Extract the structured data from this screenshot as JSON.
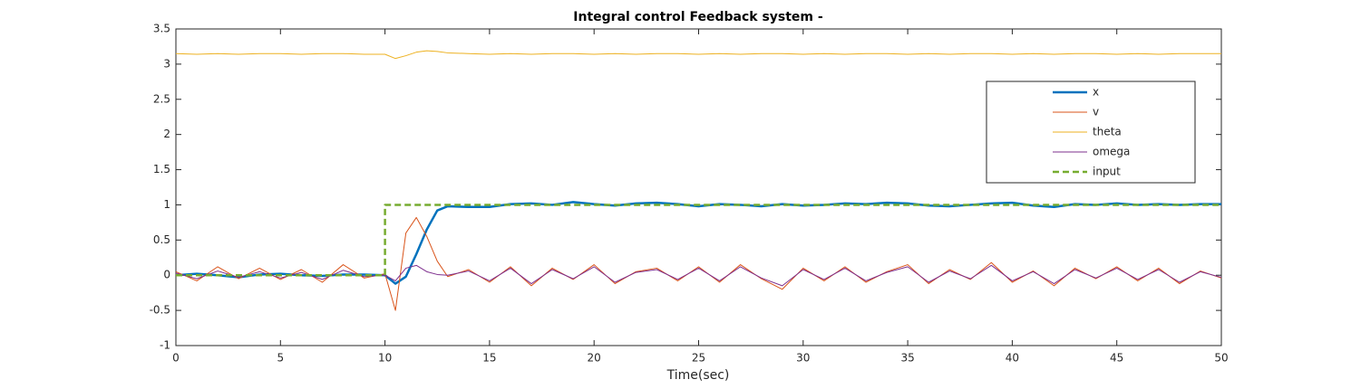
{
  "chart_data": {
    "type": "line",
    "title": "Integral control Feedback system -",
    "x_label": "Time(sec)",
    "x": [
      0,
      1,
      2,
      3,
      4,
      5,
      6,
      7,
      8,
      9,
      10,
      10,
      10.5,
      11,
      11.5,
      12,
      12.5,
      13,
      14,
      15,
      16,
      17,
      18,
      19,
      20,
      21,
      22,
      23,
      24,
      25,
      26,
      27,
      28,
      29,
      30,
      31,
      32,
      33,
      34,
      35,
      36,
      37,
      38,
      39,
      40,
      41,
      42,
      43,
      44,
      45,
      46,
      47,
      48,
      49,
      50
    ],
    "series": [
      {
        "name": "x",
        "color": "#0072bd",
        "width": 2.5,
        "dashed": false,
        "values": [
          0,
          0.02,
          0,
          -0.03,
          0.01,
          0.02,
          0,
          -0.01,
          0.01,
          0.01,
          0,
          0,
          -0.12,
          -0.02,
          0.3,
          0.65,
          0.92,
          0.98,
          0.97,
          0.97,
          1.01,
          1.02,
          1.0,
          1.04,
          1.01,
          0.99,
          1.02,
          1.03,
          1.01,
          0.98,
          1.01,
          1.0,
          0.98,
          1.01,
          0.99,
          1.0,
          1.02,
          1.01,
          1.03,
          1.02,
          0.99,
          0.98,
          1.0,
          1.02,
          1.03,
          0.99,
          0.97,
          1.01,
          1.0,
          1.02,
          1.0,
          1.01,
          1.0,
          1.01,
          1.01
        ]
      },
      {
        "name": "v",
        "color": "#d95319",
        "width": 1,
        "dashed": false,
        "values": [
          0.05,
          -0.08,
          0.12,
          -0.05,
          0.1,
          -0.06,
          0.08,
          -0.1,
          0.15,
          -0.04,
          0.02,
          0.02,
          -0.5,
          0.6,
          0.82,
          0.55,
          0.2,
          -0.02,
          0.08,
          -0.1,
          0.12,
          -0.15,
          0.1,
          -0.06,
          0.15,
          -0.12,
          0.05,
          0.1,
          -0.08,
          0.12,
          -0.1,
          0.15,
          -0.05,
          -0.2,
          0.1,
          -0.08,
          0.12,
          -0.1,
          0.05,
          0.15,
          -0.12,
          0.08,
          -0.06,
          0.18,
          -0.1,
          0.06,
          -0.15,
          0.1,
          -0.05,
          0.12,
          -0.08,
          0.1,
          -0.12,
          0.06,
          -0.04
        ]
      },
      {
        "name": "theta",
        "color": "#edb120",
        "width": 1,
        "dashed": false,
        "values": [
          3.15,
          3.14,
          3.15,
          3.14,
          3.15,
          3.15,
          3.14,
          3.15,
          3.15,
          3.14,
          3.14,
          3.14,
          3.08,
          3.12,
          3.17,
          3.19,
          3.18,
          3.16,
          3.15,
          3.14,
          3.15,
          3.14,
          3.15,
          3.15,
          3.14,
          3.15,
          3.14,
          3.15,
          3.15,
          3.14,
          3.15,
          3.14,
          3.15,
          3.15,
          3.14,
          3.15,
          3.14,
          3.15,
          3.15,
          3.14,
          3.15,
          3.14,
          3.15,
          3.15,
          3.14,
          3.15,
          3.14,
          3.15,
          3.15,
          3.14,
          3.15,
          3.14,
          3.15,
          3.15,
          3.15
        ]
      },
      {
        "name": "omega",
        "color": "#7e2f8e",
        "width": 1,
        "dashed": false,
        "values": [
          0.03,
          -0.05,
          0.06,
          -0.03,
          0.05,
          -0.04,
          0.04,
          -0.06,
          0.07,
          -0.02,
          0,
          0,
          -0.08,
          0.1,
          0.14,
          0.05,
          0.01,
          0,
          0.06,
          -0.08,
          0.1,
          -0.12,
          0.08,
          -0.05,
          0.12,
          -0.1,
          0.04,
          0.08,
          -0.06,
          0.1,
          -0.08,
          0.12,
          -0.04,
          -0.15,
          0.08,
          -0.06,
          0.1,
          -0.08,
          0.04,
          0.12,
          -0.1,
          0.06,
          -0.05,
          0.14,
          -0.08,
          0.05,
          -0.12,
          0.08,
          -0.04,
          0.1,
          -0.06,
          0.08,
          -0.1,
          0.05,
          -0.03
        ]
      },
      {
        "name": "input",
        "color": "#77ac30",
        "width": 2.5,
        "dashed": true,
        "values": [
          0,
          0,
          0,
          0,
          0,
          0,
          0,
          0,
          0,
          0,
          0,
          1,
          1,
          1,
          1,
          1,
          1,
          1,
          1,
          1,
          1,
          1,
          1,
          1,
          1,
          1,
          1,
          1,
          1,
          1,
          1,
          1,
          1,
          1,
          1,
          1,
          1,
          1,
          1,
          1,
          1,
          1,
          1,
          1,
          1,
          1,
          1,
          1,
          1,
          1,
          1,
          1,
          1,
          1,
          1
        ]
      }
    ],
    "xlim": [
      0,
      50
    ],
    "xticks": [
      0,
      5,
      10,
      15,
      20,
      25,
      30,
      35,
      40,
      45,
      50
    ],
    "ylim": [
      -1,
      3.5
    ],
    "yticks": [
      -1,
      -0.5,
      0,
      0.5,
      1,
      1.5,
      2,
      2.5,
      3,
      3.5
    ],
    "grid": false,
    "legend_loc": "upper right"
  }
}
